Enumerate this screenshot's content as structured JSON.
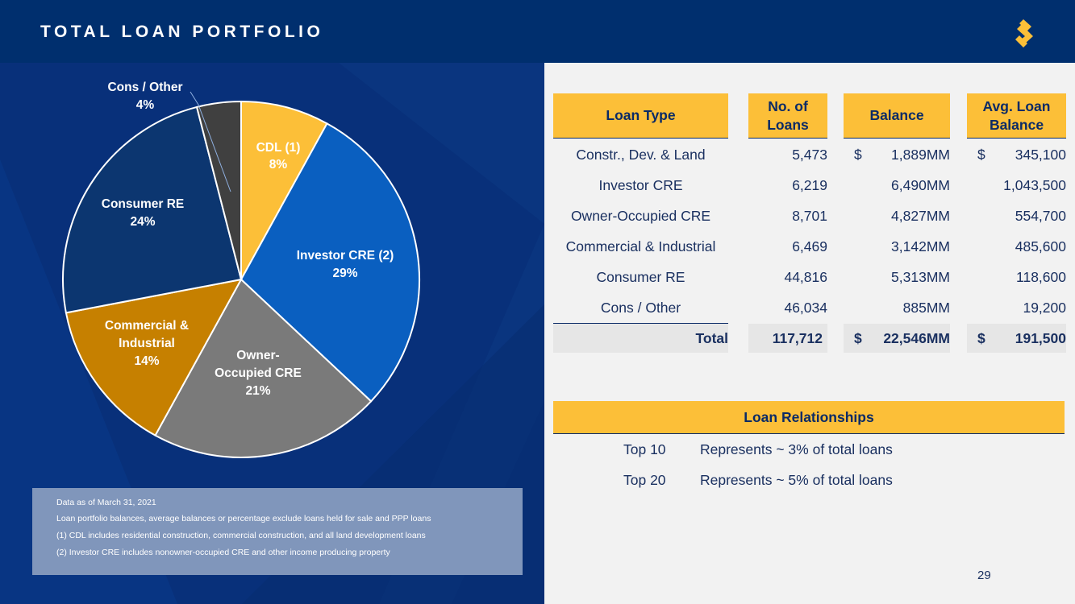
{
  "header": {
    "title": "TOTAL LOAN PORTFOLIO"
  },
  "colors": {
    "navy": "#002f6e",
    "gold": "#fcbf38",
    "panel_blue": "#08307a"
  },
  "chart_data": {
    "type": "pie",
    "slices": [
      {
        "label": "CDL (1)",
        "pct_label": "8%",
        "value": 8,
        "color": "#fcbf38",
        "text_color": "#ffffff"
      },
      {
        "label": "Investor CRE (2)",
        "pct_label": "29%",
        "value": 29,
        "color": "#0a5fc0",
        "text_color": "#ffffff"
      },
      {
        "label": "Owner-Occupied CRE",
        "pct_label": "21%",
        "value": 21,
        "color": "#7a7a7a",
        "text_color": "#ffffff"
      },
      {
        "label": "Commercial & Industrial",
        "pct_label": "14%",
        "value": 14,
        "color": "#c68000",
        "text_color": "#ffffff"
      },
      {
        "label": "Consumer RE",
        "pct_label": "24%",
        "value": 24,
        "color": "#0c3670",
        "text_color": "#ffffff"
      },
      {
        "label": "Cons / Other",
        "pct_label": "4%",
        "value": 4,
        "color": "#404040",
        "text_color": "#ffffff"
      }
    ]
  },
  "table": {
    "headers": {
      "type": "Loan Type",
      "num_line1": "No. of",
      "num_line2": "Loans",
      "balance": "Balance",
      "avg_line1": "Avg. Loan",
      "avg_line2": "Balance"
    },
    "rows": [
      {
        "type": "Constr., Dev. & Land",
        "num": "5,473",
        "bal_sign": "$",
        "balance": "1,889MM",
        "avg_sign": "$",
        "avg": "345,100"
      },
      {
        "type": "Investor CRE",
        "num": "6,219",
        "bal_sign": "",
        "balance": "6,490MM",
        "avg_sign": "",
        "avg": "1,043,500"
      },
      {
        "type": "Owner-Occupied CRE",
        "num": "8,701",
        "bal_sign": "",
        "balance": "4,827MM",
        "avg_sign": "",
        "avg": "554,700"
      },
      {
        "type": "Commercial & Industrial",
        "num": "6,469",
        "bal_sign": "",
        "balance": "3,142MM",
        "avg_sign": "",
        "avg": "485,600"
      },
      {
        "type": "Consumer RE",
        "num": "44,816",
        "bal_sign": "",
        "balance": "5,313MM",
        "avg_sign": "",
        "avg": "118,600"
      },
      {
        "type": "Cons / Other",
        "num": "46,034",
        "bal_sign": "",
        "balance": "885MM",
        "avg_sign": "",
        "avg": "19,200"
      }
    ],
    "total": {
      "label": "Total",
      "num": "117,712",
      "bal_sign": "$",
      "balance": "22,546MM",
      "avg_sign": "$",
      "avg": "191,500"
    }
  },
  "relationships": {
    "title": "Loan Relationships",
    "rows": [
      {
        "label": "Top 10",
        "text": "Represents ~ 3% of total loans"
      },
      {
        "label": "Top 20",
        "text": "Represents ~ 5% of total loans"
      }
    ]
  },
  "notes": [
    "Data as of March 31, 2021",
    "Loan portfolio balances, average balances or percentage exclude loans held for sale and PPP loans",
    "(1) CDL includes residential construction, commercial construction, and all land development loans",
    "(2) Investor CRE includes nonowner-occupied CRE and other income producing property"
  ],
  "page_number": "29",
  "logo_icon": "s-logo-icon"
}
